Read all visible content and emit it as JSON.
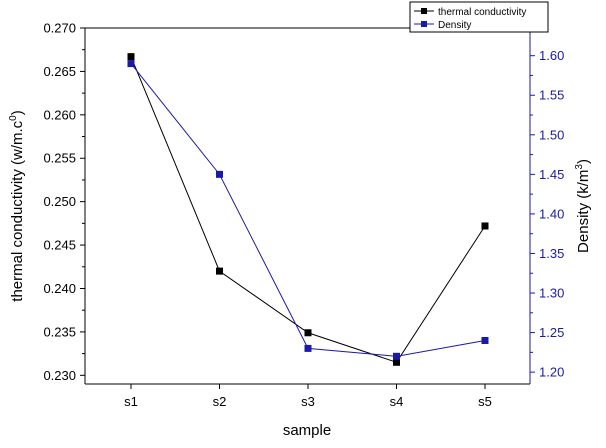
{
  "chart_data": {
    "type": "line",
    "categories": [
      "s1",
      "s2",
      "s3",
      "s4",
      "s5"
    ],
    "xlabel": "sample",
    "y_left": {
      "label": "thermal conductivity (w/m.c",
      "label_sup": "0",
      "label_tail": ")",
      "ylim": [
        0.229,
        0.27
      ],
      "ticks": [
        "0.230",
        "0.235",
        "0.240",
        "0.245",
        "0.250",
        "0.255",
        "0.260",
        "0.265",
        "0.270"
      ]
    },
    "y_right": {
      "label": "Density (k/m",
      "label_sup": "3",
      "label_tail": ")",
      "ylim": [
        1.185,
        1.635
      ],
      "ticks": [
        "1.20",
        "1.25",
        "1.30",
        "1.35",
        "1.40",
        "1.45",
        "1.50",
        "1.55",
        "1.60"
      ]
    },
    "series": [
      {
        "name": "thermal conductivity",
        "axis": "left",
        "color": "#000000",
        "values": [
          0.2667,
          0.242,
          0.2349,
          0.2315,
          0.2472
        ]
      },
      {
        "name": "Density",
        "axis": "right",
        "color": "#1a1aa6",
        "values": [
          1.59,
          1.45,
          1.23,
          1.22,
          1.24
        ]
      }
    ],
    "legend_position": "top-right",
    "grid": false
  },
  "colors": {
    "left_axis": "#000000",
    "right_axis": "#1a1aa6"
  }
}
